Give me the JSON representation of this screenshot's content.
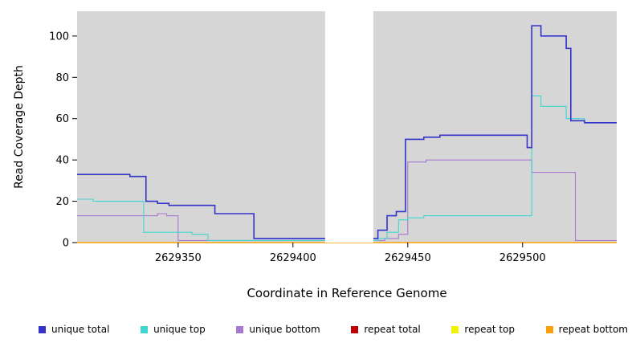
{
  "chart_data": {
    "type": "line",
    "step": true,
    "title": "",
    "xlabel": "Coordinate in Reference Genome",
    "ylabel": "Read Coverage Depth",
    "xlim": [
      2629306,
      2629541
    ],
    "ylim": [
      0,
      112
    ],
    "xticks": [
      2629350,
      2629400,
      2629450,
      2629500
    ],
    "yticks": [
      0,
      20,
      40,
      60,
      80,
      100
    ],
    "plot_background": "#d6d6d6",
    "gap_background": "#ffffff",
    "gap_region": [
      2629414,
      2629435
    ],
    "series": [
      {
        "name": "unique total",
        "color": "#3333cc",
        "width": 1.6,
        "z": 6,
        "points": [
          [
            2629306,
            33
          ],
          [
            2629329,
            32
          ],
          [
            2629336,
            20
          ],
          [
            2629341,
            19
          ],
          [
            2629346,
            18
          ],
          [
            2629366,
            14
          ],
          [
            2629383,
            2
          ],
          [
            2629437,
            6
          ],
          [
            2629441,
            13
          ],
          [
            2629445,
            15
          ],
          [
            2629449,
            50
          ],
          [
            2629457,
            51
          ],
          [
            2629464,
            52
          ],
          [
            2629502,
            46
          ],
          [
            2629504,
            105
          ],
          [
            2629508,
            100
          ],
          [
            2629519,
            94
          ],
          [
            2629521,
            59
          ],
          [
            2629527,
            58
          ],
          [
            2629541,
            58
          ]
        ]
      },
      {
        "name": "unique top",
        "color": "#40d6d0",
        "width": 1.1,
        "z": 5,
        "points": [
          [
            2629306,
            21
          ],
          [
            2629313,
            20
          ],
          [
            2629335,
            5
          ],
          [
            2629356,
            4
          ],
          [
            2629363,
            1
          ],
          [
            2629437,
            2
          ],
          [
            2629441,
            5
          ],
          [
            2629446,
            11
          ],
          [
            2629450,
            12
          ],
          [
            2629457,
            13
          ],
          [
            2629502,
            13
          ],
          [
            2629504,
            71
          ],
          [
            2629508,
            66
          ],
          [
            2629519,
            60
          ],
          [
            2629527,
            58
          ],
          [
            2629541,
            58
          ]
        ]
      },
      {
        "name": "unique bottom",
        "color": "#a878d0",
        "width": 1.1,
        "z": 4,
        "points": [
          [
            2629306,
            13
          ],
          [
            2629341,
            14
          ],
          [
            2629345,
            13
          ],
          [
            2629350,
            1
          ],
          [
            2629440,
            2
          ],
          [
            2629446,
            4
          ],
          [
            2629450,
            39
          ],
          [
            2629458,
            40
          ],
          [
            2629502,
            40
          ],
          [
            2629504,
            34
          ],
          [
            2629521,
            34
          ],
          [
            2629523,
            1
          ],
          [
            2629541,
            1
          ]
        ]
      },
      {
        "name": "repeat total",
        "color": "#c00000",
        "width": 1.0,
        "z": 1,
        "points": [
          [
            2629306,
            0
          ],
          [
            2629541,
            0
          ]
        ]
      },
      {
        "name": "repeat top",
        "color": "#f2f200",
        "width": 1.0,
        "z": 2,
        "points": [
          [
            2629306,
            0
          ],
          [
            2629541,
            0
          ]
        ]
      },
      {
        "name": "repeat bottom",
        "color": "#ffa000",
        "width": 1.4,
        "z": 3,
        "points": [
          [
            2629306,
            0
          ],
          [
            2629541,
            0
          ]
        ]
      }
    ]
  }
}
